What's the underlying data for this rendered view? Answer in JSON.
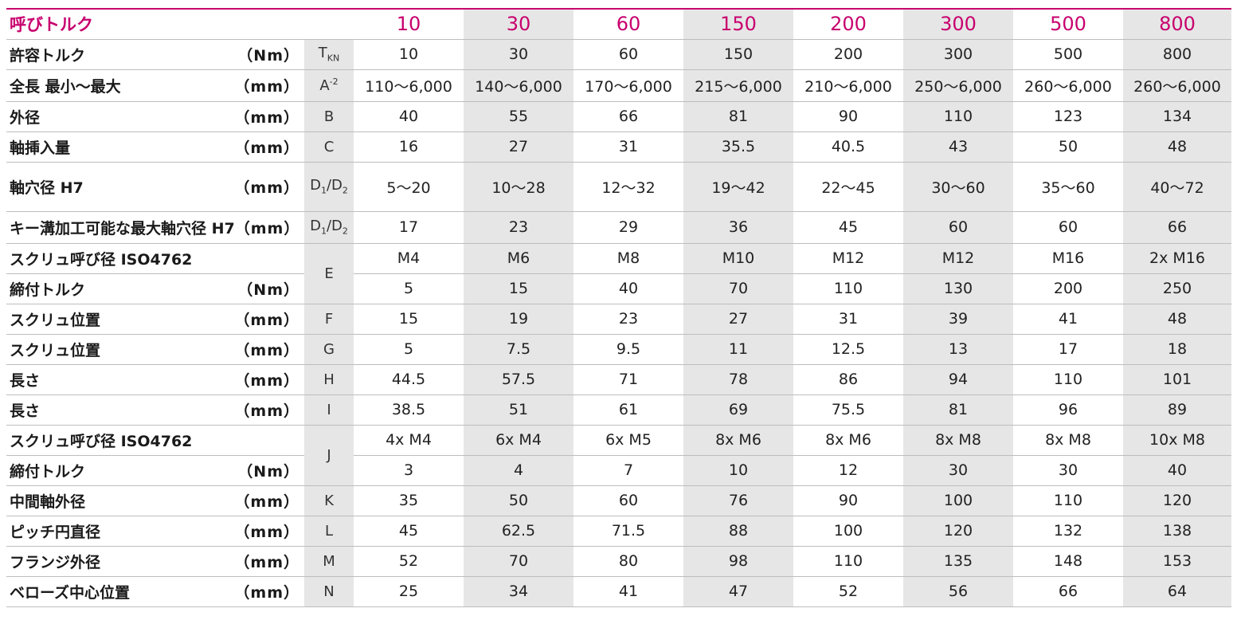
{
  "header": {
    "label": "呼びトルク",
    "sizes": [
      "10",
      "30",
      "60",
      "150",
      "200",
      "300",
      "500",
      "800"
    ]
  },
  "rows": [
    {
      "label": "許容トルク",
      "unit": "（Nm）",
      "sym": "T",
      "sym_sub": "KN",
      "values": [
        "10",
        "30",
        "60",
        "150",
        "200",
        "300",
        "500",
        "800"
      ]
    },
    {
      "label": "全長 最小〜最大",
      "unit": "（mm）",
      "sym": "A",
      "sym_sup": "-2",
      "values": [
        "110～6,000",
        "140～6,000",
        "170～6,000",
        "215～6,000",
        "210～6,000",
        "250～6,000",
        "260～6,000",
        "260～6,000"
      ]
    },
    {
      "label": "外径",
      "unit": "（mm）",
      "sym": "B",
      "values": [
        "40",
        "55",
        "66",
        "81",
        "90",
        "110",
        "123",
        "134"
      ]
    },
    {
      "label": "軸挿入量",
      "unit": "（mm）",
      "sym": "C",
      "values": [
        "16",
        "27",
        "31",
        "35.5",
        "40.5",
        "43",
        "50",
        "48"
      ]
    },
    {
      "label": "軸穴径 H7",
      "unit": "（mm）",
      "sym": "D",
      "sym_sub": "1",
      "sym2": "/D",
      "sym2_sub": "2",
      "values": [
        "5～20",
        "10～28",
        "12～32",
        "19～42",
        "22～45",
        "30～60",
        "35～60",
        "40～72"
      ]
    },
    {
      "label": "キー溝加工可能な最大軸穴径 H7",
      "unit": "（mm）",
      "sym": "D",
      "sym_sub": "1",
      "sym2": "/D",
      "sym2_sub": "2",
      "values": [
        "17",
        "23",
        "29",
        "36",
        "45",
        "60",
        "60",
        "66"
      ]
    },
    {
      "label": "スクリュ呼び径 ISO4762",
      "unit": "",
      "sym": "E",
      "values": [
        "M4",
        "M6",
        "M8",
        "M10",
        "M12",
        "M12",
        "M16",
        "2x M16"
      ]
    },
    {
      "label": "締付トルク",
      "unit": "（Nm）",
      "values": [
        "5",
        "15",
        "40",
        "70",
        "110",
        "130",
        "200",
        "250"
      ]
    },
    {
      "label": "スクリュ位置",
      "unit": "（mm）",
      "sym": "F",
      "values": [
        "15",
        "19",
        "23",
        "27",
        "31",
        "39",
        "41",
        "48"
      ]
    },
    {
      "label": "スクリュ位置",
      "unit": "（mm）",
      "sym": "G",
      "values": [
        "5",
        "7.5",
        "9.5",
        "11",
        "12.5",
        "13",
        "17",
        "18"
      ]
    },
    {
      "label": "長さ",
      "unit": "（mm）",
      "sym": "H",
      "values": [
        "44.5",
        "57.5",
        "71",
        "78",
        "86",
        "94",
        "110",
        "101"
      ]
    },
    {
      "label": "長さ",
      "unit": "（mm）",
      "sym": "I",
      "values": [
        "38.5",
        "51",
        "61",
        "69",
        "75.5",
        "81",
        "96",
        "89"
      ]
    },
    {
      "label": "スクリュ呼び径 ISO4762",
      "unit": "",
      "sym": "J",
      "values": [
        "4x M4",
        "6x M4",
        "6x M5",
        "8x M6",
        "8x M6",
        "8x M8",
        "8x M8",
        "10x M8"
      ]
    },
    {
      "label": "締付トルク",
      "unit": "（Nm）",
      "values": [
        "3",
        "4",
        "7",
        "10",
        "12",
        "30",
        "30",
        "40"
      ]
    },
    {
      "label": "中間軸外径",
      "unit": "（mm）",
      "sym": "K",
      "values": [
        "35",
        "50",
        "60",
        "76",
        "90",
        "100",
        "110",
        "120"
      ]
    },
    {
      "label": "ピッチ円直径",
      "unit": "（mm）",
      "sym": "L",
      "values": [
        "45",
        "62.5",
        "71.5",
        "88",
        "100",
        "120",
        "132",
        "138"
      ]
    },
    {
      "label": "フランジ外径",
      "unit": "（mm）",
      "sym": "M",
      "values": [
        "52",
        "70",
        "80",
        "98",
        "110",
        "135",
        "148",
        "153"
      ]
    },
    {
      "label": "ベローズ中心位置",
      "unit": "（mm）",
      "sym": "N",
      "values": [
        "25",
        "34",
        "41",
        "47",
        "52",
        "56",
        "66",
        "64"
      ]
    }
  ]
}
